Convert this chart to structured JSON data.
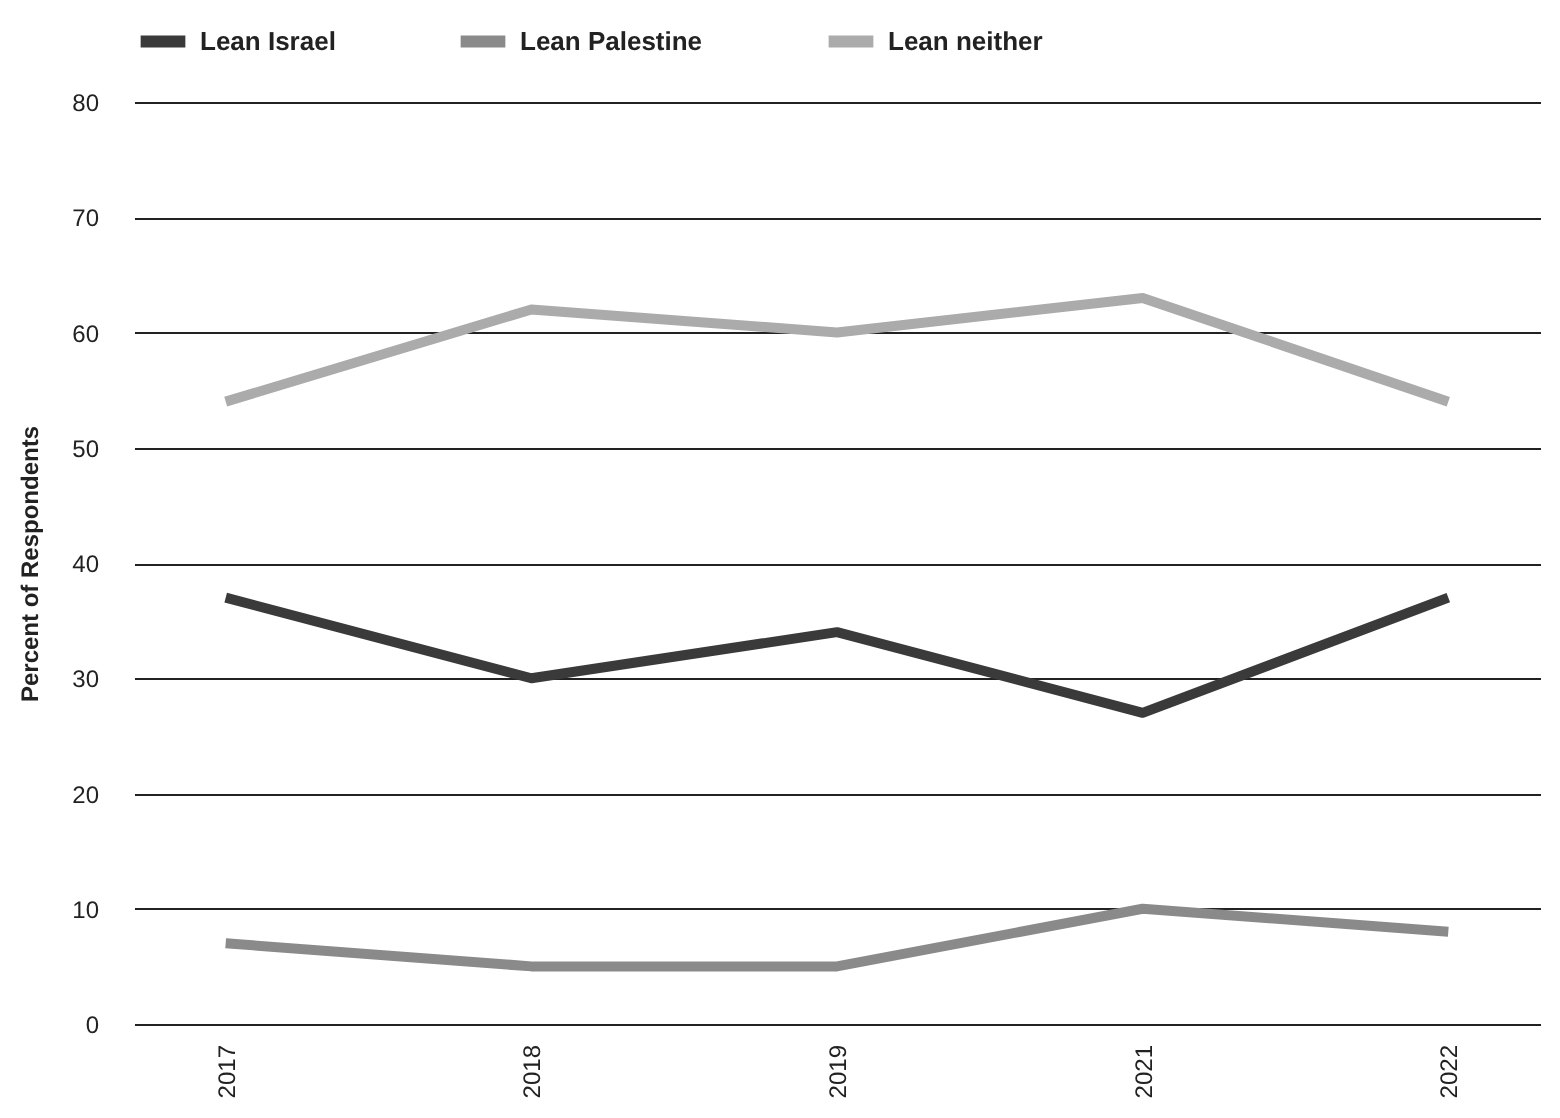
{
  "chart_data": {
    "type": "line",
    "ylabel": "Percent of Respondents",
    "categories": [
      "2017",
      "2018",
      "2019",
      "2021",
      "2022"
    ],
    "series": [
      {
        "name": "Lean Israel",
        "color": "#3a3a3a",
        "values": [
          37,
          30,
          34,
          27,
          37
        ]
      },
      {
        "name": "Lean Palestine",
        "color": "#8a8a8a",
        "values": [
          7,
          5,
          5,
          10,
          8
        ]
      },
      {
        "name": "Lean neither",
        "color": "#ababab",
        "values": [
          54,
          62,
          60,
          63,
          54
        ]
      }
    ],
    "ylim": [
      0,
      80
    ],
    "yticks": [
      0,
      10,
      20,
      30,
      40,
      50,
      60,
      70,
      80
    ],
    "grid": "y",
    "legend": "top",
    "line_style": "solid"
  }
}
